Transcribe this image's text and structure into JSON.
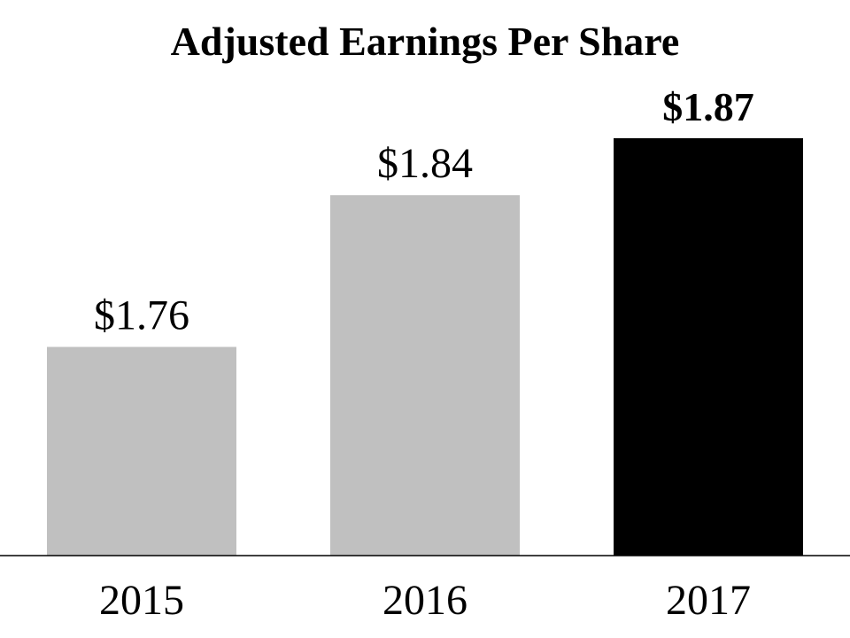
{
  "chart_data": {
    "type": "bar",
    "title": "Adjusted Earnings Per Share",
    "categories": [
      "2015",
      "2016",
      "2017"
    ],
    "values": [
      1.76,
      1.84,
      1.87
    ],
    "value_labels": [
      "$1.76",
      "$1.84",
      "$1.87"
    ],
    "colors": [
      "#c0c0c0",
      "#c0c0c0",
      "#000000"
    ],
    "ylim": [
      1.65,
      1.87
    ]
  }
}
